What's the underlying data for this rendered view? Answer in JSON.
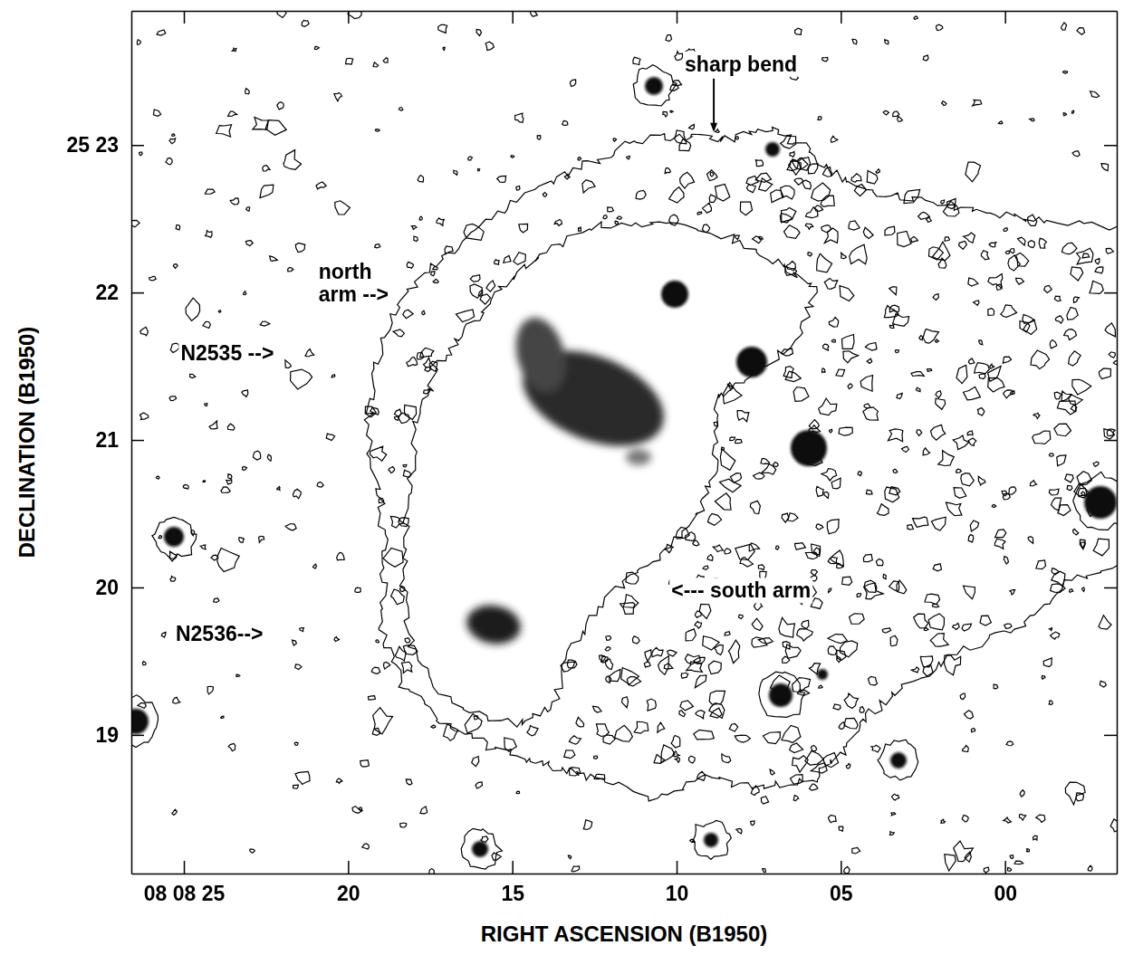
{
  "chart_data": {
    "type": "contour_image",
    "xlabel": "RIGHT ASCENSION (B1950)",
    "ylabel": "DECLINATION (B1950)",
    "xlim": [
      26.6,
      -3.4
    ],
    "ylim": [
      18.06,
      23.91
    ],
    "xticks": [
      {
        "value": 25,
        "label": "08 08 25"
      },
      20,
      15,
      10,
      {
        "value": 5,
        "label": "05"
      },
      {
        "value": 0,
        "label": "00"
      }
    ],
    "yticks": [
      {
        "value": 23,
        "label": "25 23"
      },
      22,
      21,
      20,
      19
    ],
    "annotations": [
      {
        "text": "sharp bend",
        "x": 9.75,
        "y": 23.5
      },
      {
        "text": "north",
        "x": 20.9,
        "y": 22.09
      },
      {
        "text": "arm -->",
        "x": 20.9,
        "y": 21.94
      },
      {
        "text": "N2535 -->",
        "x": 25.1,
        "y": 21.54
      },
      {
        "text": "N2536-->",
        "x": 25.25,
        "y": 19.64
      },
      {
        "text": "<--- south arm",
        "x": 10.16,
        "y": 19.93
      }
    ]
  }
}
